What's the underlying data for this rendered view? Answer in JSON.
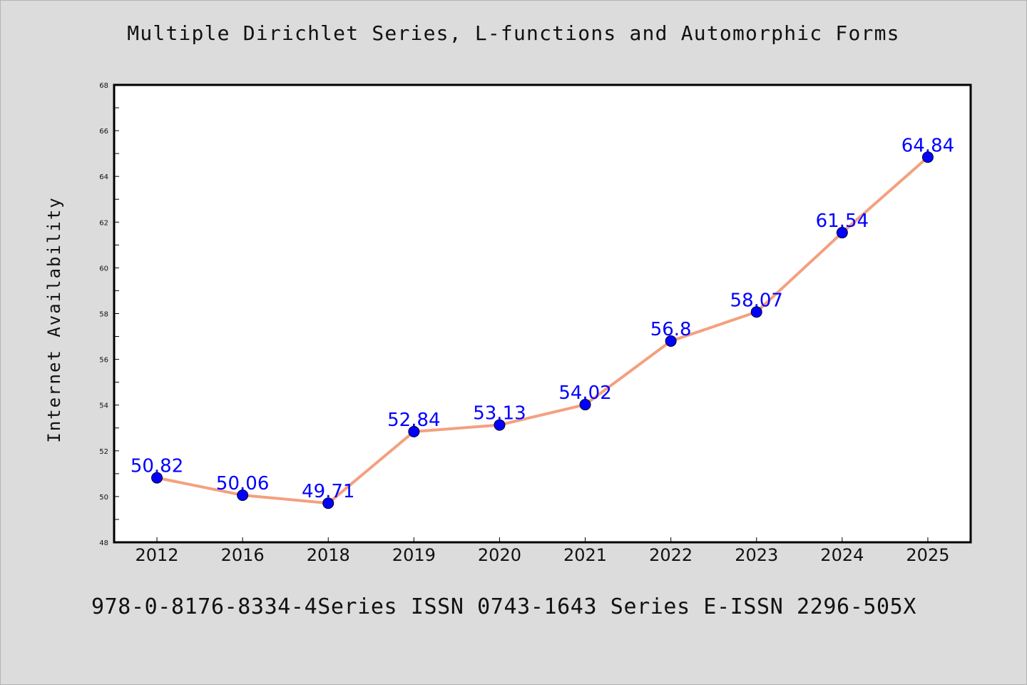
{
  "chart_data": {
    "type": "line",
    "title": "Multiple Dirichlet Series, L-functions and Automorphic Forms",
    "footer": "978-0-8176-8334-4Series ISSN 0743-1643 Series E-ISSN 2296-505X",
    "xlabel": "",
    "ylabel": "Internet Availability",
    "categories": [
      "2012",
      "2016",
      "2018",
      "2019",
      "2020",
      "2021",
      "2022",
      "2023",
      "2024",
      "2025"
    ],
    "values": [
      50.82,
      50.06,
      49.71,
      52.84,
      53.13,
      54.02,
      56.8,
      58.07,
      61.54,
      64.84
    ],
    "data_labels": [
      "50.82",
      "50.06",
      "49.71",
      "52.84",
      "53.13",
      "54.02",
      "56.8",
      "58.07",
      "61.54",
      "64.84"
    ],
    "ylim": [
      48,
      68
    ],
    "yticks": [
      "48",
      "50",
      "52",
      "54",
      "56",
      "58",
      "60",
      "62",
      "64",
      "66",
      "68"
    ],
    "grid": false,
    "line_color": "#f4a07f",
    "marker_color": "#0000ff",
    "label_color": "#0000ff",
    "background_color": "#dcdcdc",
    "plot_background": "#ffffff"
  }
}
